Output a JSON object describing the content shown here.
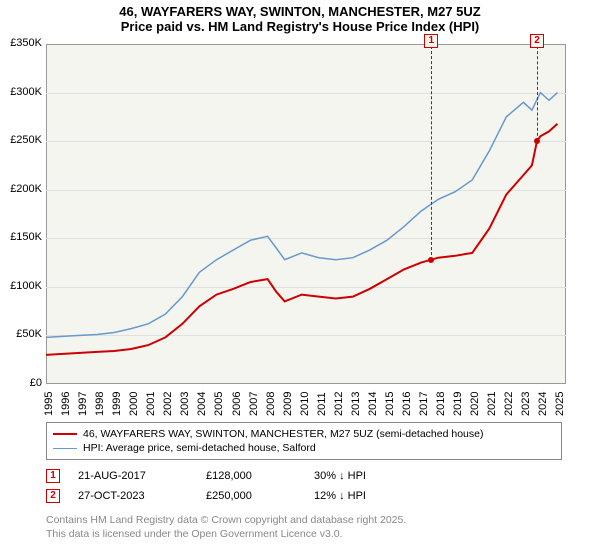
{
  "title": {
    "line1": "46, WAYFARERS WAY, SWINTON, MANCHESTER, M27 5UZ",
    "line2": "Price paid vs. HM Land Registry's House Price Index (HPI)"
  },
  "chart": {
    "type": "line",
    "background_color": "#f5f5f0",
    "grid_color": "#e0e0e0",
    "border_color": "#999999",
    "x": {
      "min": 1995,
      "max": 2025.5,
      "ticks": [
        1995,
        1996,
        1997,
        1998,
        1999,
        2000,
        2001,
        2002,
        2003,
        2004,
        2005,
        2006,
        2007,
        2008,
        2009,
        2010,
        2011,
        2012,
        2013,
        2014,
        2015,
        2016,
        2017,
        2018,
        2019,
        2020,
        2021,
        2022,
        2023,
        2024,
        2025
      ],
      "label_fontsize": 11
    },
    "y": {
      "min": 0,
      "max": 350000,
      "ticks": [
        0,
        50000,
        100000,
        150000,
        200000,
        250000,
        300000,
        350000
      ],
      "tick_labels": [
        "£0",
        "£50K",
        "£100K",
        "£150K",
        "£200K",
        "£250K",
        "£300K",
        "£350K"
      ],
      "label_fontsize": 11
    },
    "series": [
      {
        "name": "price_paid",
        "label": "46, WAYFARERS WAY, SWINTON, MANCHESTER, M27 5UZ (semi-detached house)",
        "color": "#cc0000",
        "line_width": 2,
        "data": [
          [
            1995,
            30000
          ],
          [
            1996,
            31000
          ],
          [
            1997,
            32000
          ],
          [
            1998,
            33000
          ],
          [
            1999,
            34000
          ],
          [
            2000,
            36000
          ],
          [
            2001,
            40000
          ],
          [
            2002,
            48000
          ],
          [
            2003,
            62000
          ],
          [
            2004,
            80000
          ],
          [
            2005,
            92000
          ],
          [
            2006,
            98000
          ],
          [
            2007,
            105000
          ],
          [
            2008,
            108000
          ],
          [
            2008.5,
            95000
          ],
          [
            2009,
            85000
          ],
          [
            2010,
            92000
          ],
          [
            2011,
            90000
          ],
          [
            2012,
            88000
          ],
          [
            2013,
            90000
          ],
          [
            2014,
            98000
          ],
          [
            2015,
            108000
          ],
          [
            2016,
            118000
          ],
          [
            2017,
            125000
          ],
          [
            2017.6,
            128000
          ],
          [
            2018,
            130000
          ],
          [
            2019,
            132000
          ],
          [
            2020,
            135000
          ],
          [
            2021,
            160000
          ],
          [
            2022,
            195000
          ],
          [
            2023,
            215000
          ],
          [
            2023.5,
            225000
          ],
          [
            2023.8,
            250000
          ],
          [
            2024,
            255000
          ],
          [
            2024.5,
            260000
          ],
          [
            2025,
            268000
          ]
        ]
      },
      {
        "name": "hpi",
        "label": "HPI: Average price, semi-detached house, Salford",
        "color": "#6699cc",
        "line_width": 1.5,
        "data": [
          [
            1995,
            48000
          ],
          [
            1996,
            49000
          ],
          [
            1997,
            50000
          ],
          [
            1998,
            51000
          ],
          [
            1999,
            53000
          ],
          [
            2000,
            57000
          ],
          [
            2001,
            62000
          ],
          [
            2002,
            72000
          ],
          [
            2003,
            90000
          ],
          [
            2004,
            115000
          ],
          [
            2005,
            128000
          ],
          [
            2006,
            138000
          ],
          [
            2007,
            148000
          ],
          [
            2008,
            152000
          ],
          [
            2008.5,
            140000
          ],
          [
            2009,
            128000
          ],
          [
            2010,
            135000
          ],
          [
            2011,
            130000
          ],
          [
            2012,
            128000
          ],
          [
            2013,
            130000
          ],
          [
            2014,
            138000
          ],
          [
            2015,
            148000
          ],
          [
            2016,
            162000
          ],
          [
            2017,
            178000
          ],
          [
            2018,
            190000
          ],
          [
            2019,
            198000
          ],
          [
            2020,
            210000
          ],
          [
            2021,
            240000
          ],
          [
            2022,
            275000
          ],
          [
            2023,
            290000
          ],
          [
            2023.5,
            282000
          ],
          [
            2024,
            300000
          ],
          [
            2024.5,
            292000
          ],
          [
            2025,
            300000
          ]
        ]
      }
    ],
    "markers": [
      {
        "id": "1",
        "x": 2017.6,
        "y": 128000,
        "color": "#cc0000"
      },
      {
        "id": "2",
        "x": 2023.8,
        "y": 250000,
        "color": "#cc0000"
      }
    ]
  },
  "legend": {
    "items": [
      {
        "color": "#cc0000",
        "width": 2,
        "label": "46, WAYFARERS WAY, SWINTON, MANCHESTER, M27 5UZ (semi-detached house)"
      },
      {
        "color": "#6699cc",
        "width": 1.5,
        "label": "HPI: Average price, semi-detached house, Salford"
      }
    ]
  },
  "events": [
    {
      "id": "1",
      "color": "#cc0000",
      "date": "21-AUG-2017",
      "price": "£128,000",
      "delta": "30% ↓ HPI"
    },
    {
      "id": "2",
      "color": "#cc0000",
      "date": "27-OCT-2023",
      "price": "£250,000",
      "delta": "12% ↓ HPI"
    }
  ],
  "footer": {
    "line1": "Contains HM Land Registry data © Crown copyright and database right 2025.",
    "line2": "This data is licensed under the Open Government Licence v3.0."
  }
}
